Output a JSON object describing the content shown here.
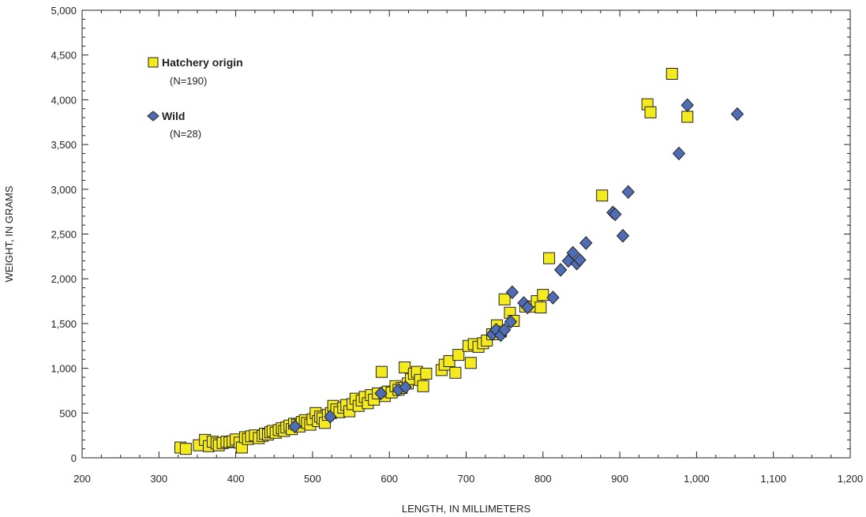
{
  "chart_data": {
    "type": "scatter",
    "xlabel": "LENGTH, IN MILLIMETERS",
    "ylabel": "WEIGHT, IN GRAMS",
    "xlim": [
      200,
      1200
    ],
    "ylim": [
      0,
      5000
    ],
    "x_ticks": [
      "200",
      "300",
      "400",
      "500",
      "600",
      "700",
      "800",
      "900",
      "1,000",
      "1,100",
      "1,200"
    ],
    "y_ticks": [
      "0",
      "500",
      "1,000",
      "1,500",
      "2,000",
      "2,500",
      "3,000",
      "3,500",
      "4,000",
      "4,500",
      "5,000"
    ],
    "grid": false,
    "legend_position": "top-left",
    "series": [
      {
        "name": "Hatchery origin",
        "count_label": "(N=190)",
        "marker": "square",
        "color": "#f4eb1f",
        "stroke": "#231f20",
        "points": [
          [
            328,
            115
          ],
          [
            335,
            100
          ],
          [
            352,
            140
          ],
          [
            360,
            200
          ],
          [
            365,
            130
          ],
          [
            370,
            180
          ],
          [
            375,
            160
          ],
          [
            378,
            140
          ],
          [
            383,
            165
          ],
          [
            388,
            180
          ],
          [
            392,
            175
          ],
          [
            396,
            185
          ],
          [
            400,
            205
          ],
          [
            405,
            170
          ],
          [
            408,
            115
          ],
          [
            412,
            230
          ],
          [
            416,
            210
          ],
          [
            420,
            240
          ],
          [
            425,
            250
          ],
          [
            430,
            220
          ],
          [
            435,
            245
          ],
          [
            438,
            270
          ],
          [
            442,
            260
          ],
          [
            445,
            285
          ],
          [
            448,
            300
          ],
          [
            452,
            280
          ],
          [
            456,
            310
          ],
          [
            460,
            330
          ],
          [
            463,
            300
          ],
          [
            466,
            340
          ],
          [
            470,
            360
          ],
          [
            473,
            320
          ],
          [
            476,
            380
          ],
          [
            480,
            370
          ],
          [
            483,
            350
          ],
          [
            486,
            400
          ],
          [
            490,
            420
          ],
          [
            493,
            390
          ],
          [
            497,
            370
          ],
          [
            500,
            430
          ],
          [
            504,
            500
          ],
          [
            507,
            410
          ],
          [
            510,
            460
          ],
          [
            513,
            440
          ],
          [
            516,
            390
          ],
          [
            520,
            480
          ],
          [
            524,
            500
          ],
          [
            527,
            580
          ],
          [
            531,
            540
          ],
          [
            535,
            510
          ],
          [
            540,
            560
          ],
          [
            544,
            590
          ],
          [
            548,
            520
          ],
          [
            552,
            600
          ],
          [
            556,
            660
          ],
          [
            560,
            580
          ],
          [
            564,
            640
          ],
          [
            568,
            680
          ],
          [
            572,
            610
          ],
          [
            576,
            700
          ],
          [
            580,
            650
          ],
          [
            585,
            720
          ],
          [
            590,
            960
          ],
          [
            594,
            690
          ],
          [
            598,
            740
          ],
          [
            603,
            730
          ],
          [
            608,
            800
          ],
          [
            612,
            760
          ],
          [
            616,
            780
          ],
          [
            620,
            1010
          ],
          [
            624,
            830
          ],
          [
            628,
            880
          ],
          [
            632,
            940
          ],
          [
            636,
            960
          ],
          [
            640,
            870
          ],
          [
            644,
            800
          ],
          [
            648,
            940
          ],
          [
            668,
            980
          ],
          [
            672,
            1040
          ],
          [
            678,
            1080
          ],
          [
            686,
            950
          ],
          [
            690,
            1150
          ],
          [
            703,
            1250
          ],
          [
            706,
            1060
          ],
          [
            710,
            1270
          ],
          [
            716,
            1240
          ],
          [
            722,
            1280
          ],
          [
            727,
            1310
          ],
          [
            734,
            1380
          ],
          [
            740,
            1480
          ],
          [
            745,
            1410
          ],
          [
            750,
            1770
          ],
          [
            757,
            1620
          ],
          [
            762,
            1530
          ],
          [
            777,
            1690
          ],
          [
            786,
            1690
          ],
          [
            792,
            1750
          ],
          [
            797,
            1680
          ],
          [
            800,
            1820
          ],
          [
            808,
            2230
          ],
          [
            877,
            2930
          ],
          [
            936,
            3950
          ],
          [
            940,
            3860
          ],
          [
            968,
            4290
          ],
          [
            988,
            3810
          ]
        ]
      },
      {
        "name": "Wild",
        "count_label": "(N=28)",
        "marker": "diamond",
        "color": "#4e6db4",
        "stroke": "#231f20",
        "points": [
          [
            477,
            350
          ],
          [
            523,
            460
          ],
          [
            589,
            720
          ],
          [
            612,
            760
          ],
          [
            621,
            790
          ],
          [
            734,
            1380
          ],
          [
            739,
            1430
          ],
          [
            745,
            1370
          ],
          [
            750,
            1430
          ],
          [
            758,
            1520
          ],
          [
            760,
            1850
          ],
          [
            775,
            1730
          ],
          [
            780,
            1680
          ],
          [
            813,
            1790
          ],
          [
            823,
            2100
          ],
          [
            833,
            2200
          ],
          [
            839,
            2290
          ],
          [
            844,
            2170
          ],
          [
            848,
            2210
          ],
          [
            856,
            2400
          ],
          [
            891,
            2740
          ],
          [
            894,
            2720
          ],
          [
            904,
            2480
          ],
          [
            911,
            2970
          ],
          [
            977,
            3400
          ],
          [
            988,
            3940
          ],
          [
            1053,
            3840
          ]
        ]
      }
    ]
  }
}
